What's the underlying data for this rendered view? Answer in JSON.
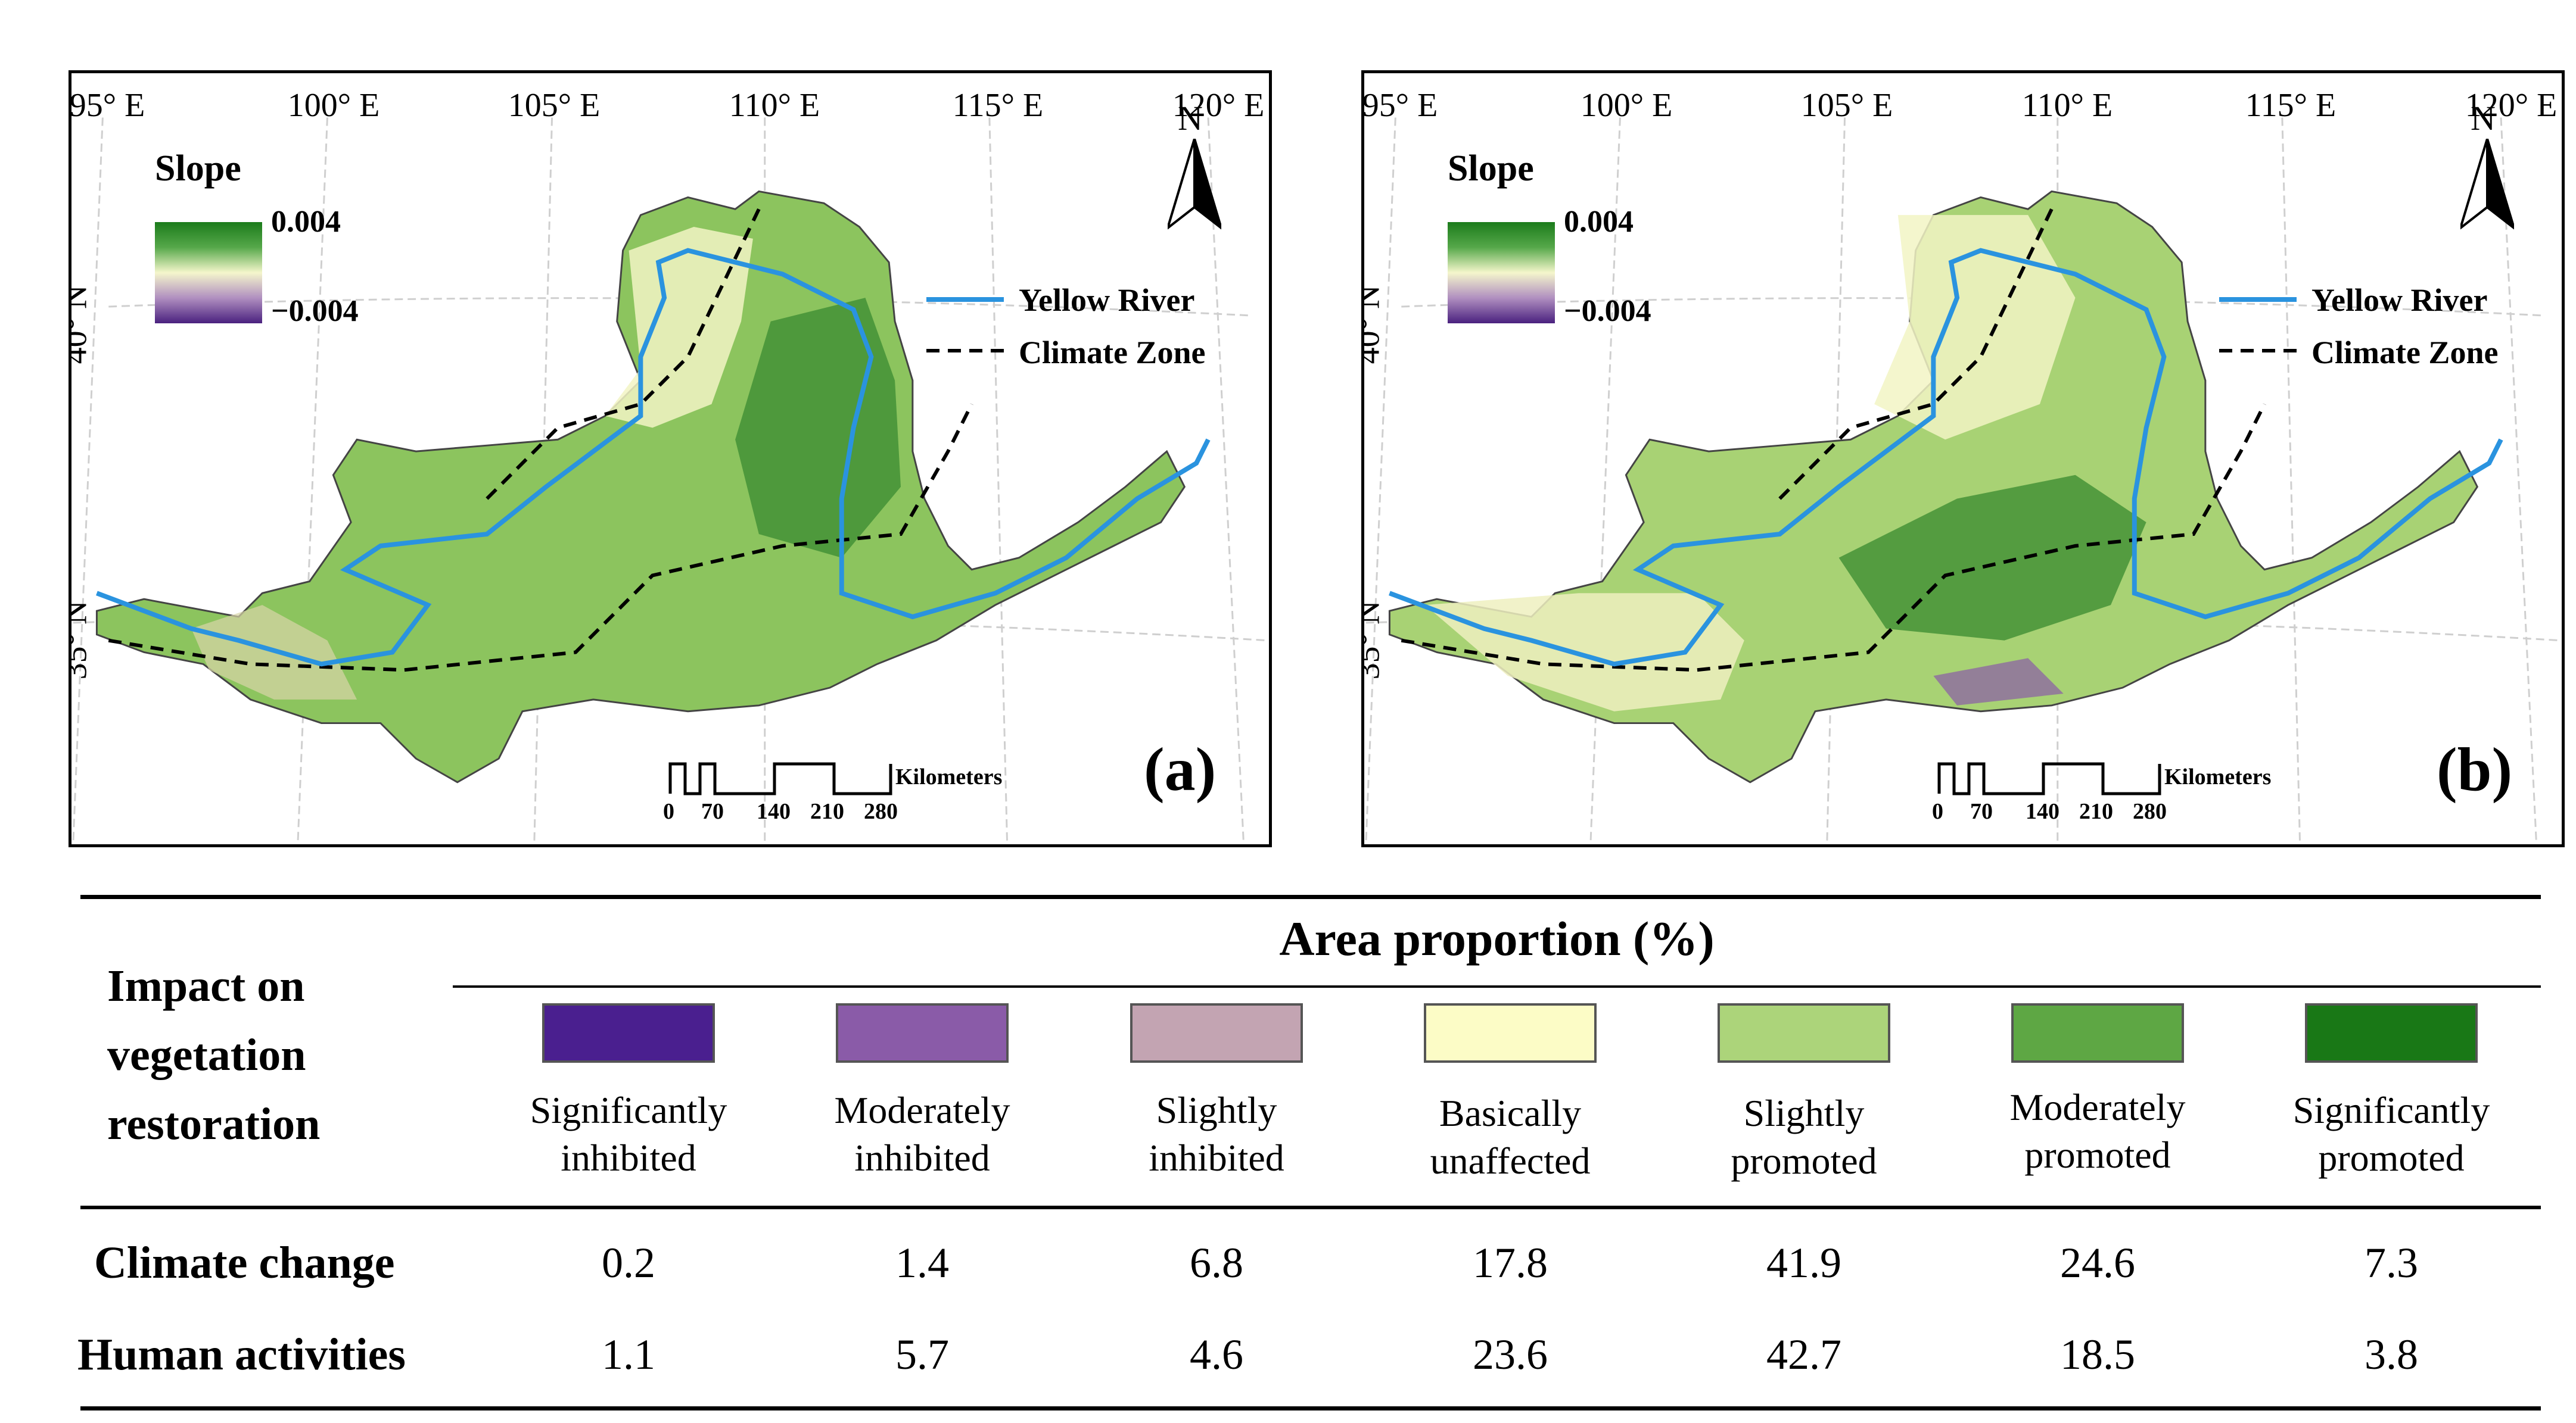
{
  "maps": [
    {
      "panel_label": "(a)",
      "lon_labels": [
        "95° E",
        "100° E",
        "105° E",
        "110° E",
        "115° E",
        "120° E"
      ],
      "lat_labels": [
        "40° N",
        "35° N"
      ],
      "legend": {
        "slope_title": "Slope",
        "max": "0.004",
        "min": "−0.004",
        "river": "Yellow River",
        "climate_zone": "Climate Zone",
        "north": "N"
      },
      "scale": {
        "unit": "Kilometers",
        "ticks": [
          "0",
          "70",
          "140",
          "210",
          "280"
        ]
      }
    },
    {
      "panel_label": "(b)",
      "lon_labels": [
        "95° E",
        "100° E",
        "105° E",
        "110° E",
        "115° E",
        "120° E"
      ],
      "lat_labels": [
        "40° N",
        "35° N"
      ],
      "legend": {
        "slope_title": "Slope",
        "max": "0.004",
        "min": "−0.004",
        "river": "Yellow River",
        "climate_zone": "Climate Zone",
        "north": "N"
      },
      "scale": {
        "unit": "Kilometers",
        "ticks": [
          "0",
          "70",
          "140",
          "210",
          "280"
        ]
      }
    }
  ],
  "table": {
    "row_header_title": [
      "Impact on",
      "vegetation",
      "restoration"
    ],
    "column_group_title": "Area proportion (%)",
    "categories": [
      {
        "line1": "Significantly",
        "line2": "inhibited",
        "color": "#4a1f8f"
      },
      {
        "line1": "Moderately",
        "line2": "inhibited",
        "color": "#8a5ba8"
      },
      {
        "line1": "Slightly",
        "line2": "inhibited",
        "color": "#c3a4b2"
      },
      {
        "line1": "Basically",
        "line2": "unaffected",
        "color": "#fcfcc6"
      },
      {
        "line1": "Slightly",
        "line2": "promoted",
        "color": "#acd47a"
      },
      {
        "line1": "Moderately",
        "line2": "promoted",
        "color": "#5ea744"
      },
      {
        "line1": "Significantly",
        "line2": "promoted",
        "color": "#197816"
      }
    ],
    "rows": [
      {
        "label": "Climate change",
        "values": [
          "0.2",
          "1.4",
          "6.8",
          "17.8",
          "41.9",
          "24.6",
          "7.3"
        ]
      },
      {
        "label": "Human activities",
        "values": [
          "1.1",
          "5.7",
          "4.6",
          "23.6",
          "42.7",
          "18.5",
          "3.8"
        ]
      }
    ]
  }
}
